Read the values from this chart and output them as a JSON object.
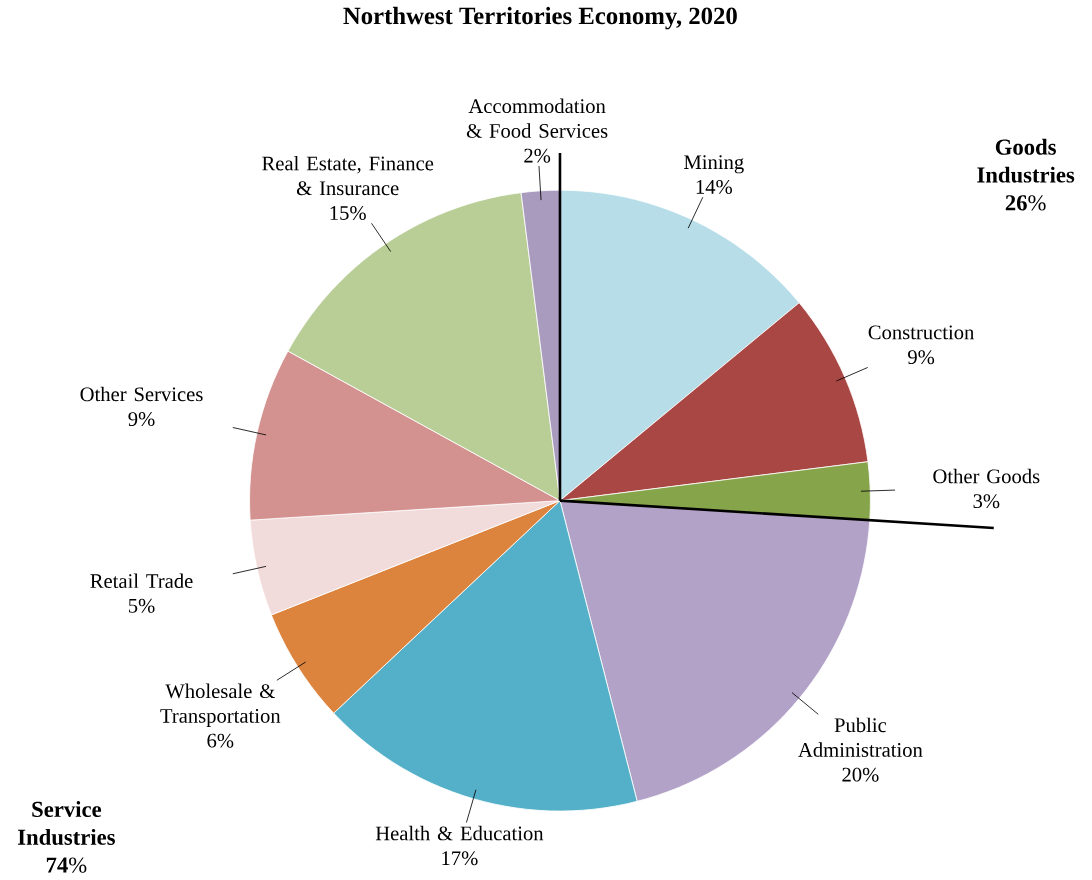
{
  "chart_data": {
    "type": "pie",
    "title": "Northwest Territories Economy, 2020",
    "categories": [
      "Mining",
      "Construction",
      "Other Goods",
      "Public Administration",
      "Health & Education",
      "Wholesale & Transportation",
      "Retail Trade",
      "Other Services",
      "Real Estate, Finance & Insurance",
      "Accommodation & Food Services"
    ],
    "values": [
      14,
      9,
      3,
      20,
      17,
      6,
      5,
      9,
      15,
      2
    ],
    "value_labels": [
      "14%",
      "9%",
      "3%",
      "20%",
      "17%",
      "6%",
      "5%",
      "9%",
      "15%",
      "2%"
    ],
    "colors": [
      "#b7dde8",
      "#a94744",
      "#86a44a",
      "#b2a2c7",
      "#53b0c8",
      "#dc843e",
      "#f2dcdb",
      "#d39290",
      "#b9cd96",
      "#a99bbd"
    ],
    "annotations": [
      "**Goods Industries** **26**%",
      "**Service Industries** **74**%"
    ]
  }
}
